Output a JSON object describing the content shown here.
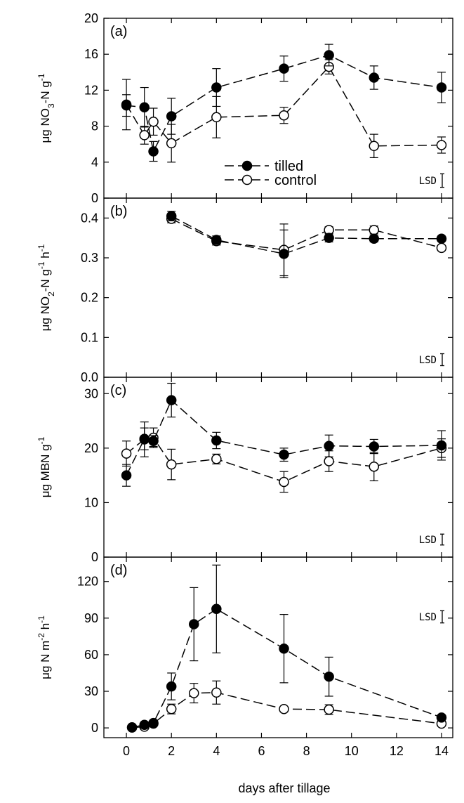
{
  "chart_data": {
    "type": "line",
    "xlabel": "days after tillage",
    "xlim": [
      -1,
      14.5
    ],
    "xticks": [
      0,
      2,
      4,
      6,
      8,
      10,
      12,
      14
    ],
    "legend": {
      "placement": "lower-center of panel (a)",
      "entries": [
        {
          "name": "tilled",
          "marker": "filled-circle"
        },
        {
          "name": "control",
          "marker": "open-circle"
        }
      ]
    },
    "lsd_label": "LSD",
    "panels": [
      {
        "label": "(a)",
        "ylabel_parts": [
          {
            "t": "μg NO"
          },
          {
            "t": "3",
            "s": "sub"
          },
          {
            "t": "-N g"
          },
          {
            "t": "-1",
            "s": "sup"
          }
        ],
        "ylim": [
          0,
          20
        ],
        "yticks": [
          "0",
          "4",
          "8",
          "12",
          "16",
          "20"
        ],
        "lsd": 1.5,
        "series": [
          {
            "name": "tilled",
            "x": [
              0,
              0.8,
              1.2,
              2,
              4,
              7,
              9,
              11,
              14
            ],
            "y": [
              10.3,
              10.1,
              5.2,
              9.1,
              12.3,
              14.4,
              15.9,
              13.4,
              12.3
            ],
            "err": [
              1.2,
              2.2,
              1.1,
              2.0,
              2.1,
              1.4,
              1.2,
              1.3,
              1.7
            ]
          },
          {
            "name": "control",
            "x": [
              0,
              0.8,
              1.2,
              2,
              4,
              7,
              9,
              11,
              14
            ],
            "y": [
              10.4,
              7.0,
              8.5,
              6.1,
              9.0,
              9.2,
              14.6,
              5.8,
              5.9
            ],
            "err": [
              2.8,
              1.0,
              1.5,
              2.1,
              2.3,
              0.9,
              0.8,
              1.3,
              0.9
            ]
          }
        ]
      },
      {
        "label": "(b)",
        "ylabel_parts": [
          {
            "t": "μg NO"
          },
          {
            "t": "2",
            "s": "sub"
          },
          {
            "t": "-N g"
          },
          {
            "t": "-1",
            "s": "sup"
          },
          {
            "t": " h"
          },
          {
            "t": "-1",
            "s": "sup"
          }
        ],
        "ylim": [
          0,
          0.45
        ],
        "yticks": [
          "0.0",
          "0.1",
          "0.2",
          "0.3",
          "0.4"
        ],
        "lsd": 0.03,
        "series": [
          {
            "name": "tilled",
            "x": [
              2,
              4,
              7,
              9,
              11,
              14
            ],
            "y": [
              0.405,
              0.345,
              0.31,
              0.35,
              0.348,
              0.348
            ],
            "err": [
              0.012,
              0.01,
              0.06,
              0.01,
              0.008,
              0.006
            ]
          },
          {
            "name": "control",
            "x": [
              2,
              4,
              7,
              9,
              11,
              14
            ],
            "y": [
              0.398,
              0.342,
              0.32,
              0.37,
              0.37,
              0.325
            ],
            "err": [
              0.01,
              0.01,
              0.065,
              0.008,
              0.01,
              0.006
            ]
          }
        ]
      },
      {
        "label": "(c)",
        "ylabel_parts": [
          {
            "t": "μg MBN g"
          },
          {
            "t": "-1",
            "s": "sup"
          }
        ],
        "ylim": [
          0,
          33
        ],
        "yticks": [
          "0",
          "10",
          "20",
          "30"
        ],
        "lsd": 2.0,
        "series": [
          {
            "name": "tilled",
            "x": [
              0,
              0.8,
              1.2,
              2,
              4,
              7,
              9,
              11,
              14
            ],
            "y": [
              15.0,
              21.7,
              21.3,
              28.8,
              21.4,
              18.8,
              20.4,
              20.3,
              20.5
            ],
            "err": [
              2.0,
              2.0,
              1.0,
              3.1,
              1.5,
              1.2,
              2.0,
              1.3,
              2.7
            ]
          },
          {
            "name": "control",
            "x": [
              0,
              0.8,
              1.2,
              2,
              4,
              7,
              9,
              11,
              14
            ],
            "y": [
              19.0,
              21.6,
              21.9,
              17.0,
              18.0,
              13.8,
              17.6,
              16.6,
              20.0
            ],
            "err": [
              2.3,
              3.2,
              1.8,
              2.8,
              0.9,
              1.9,
              1.9,
              2.6,
              1.7
            ]
          }
        ]
      },
      {
        "label": "(d)",
        "ylabel_parts": [
          {
            "t": "μg N m"
          },
          {
            "t": "-2",
            "s": "sup"
          },
          {
            "t": " h"
          },
          {
            "t": "-1",
            "s": "sup"
          }
        ],
        "ylim": [
          -8,
          140
        ],
        "yticks": [
          "0",
          "30",
          "60",
          "90",
          "120"
        ],
        "lsd": 10,
        "series": [
          {
            "name": "tilled",
            "x": [
              0.25,
              0.8,
              1.2,
              2,
              3,
              4,
              7,
              9,
              14
            ],
            "y": [
              0.5,
              2.5,
              4.0,
              34.0,
              85.0,
              97.5,
              65.0,
              42.0,
              8.5
            ],
            "err": [
              0.5,
              1.5,
              1.5,
              11.0,
              30.0,
              36.0,
              28.0,
              16.0,
              2.0
            ]
          },
          {
            "name": "control",
            "x": [
              0.25,
              0.8,
              1.2,
              2,
              3,
              4,
              7,
              9,
              14
            ],
            "y": [
              0.3,
              1.0,
              3.5,
              15.5,
              28.5,
              29.0,
              15.5,
              15.0,
              3.5
            ],
            "err": [
              0.3,
              1.0,
              1.5,
              4.0,
              8.0,
              9.5,
              2.0,
              4.0,
              1.0
            ]
          }
        ]
      }
    ]
  }
}
